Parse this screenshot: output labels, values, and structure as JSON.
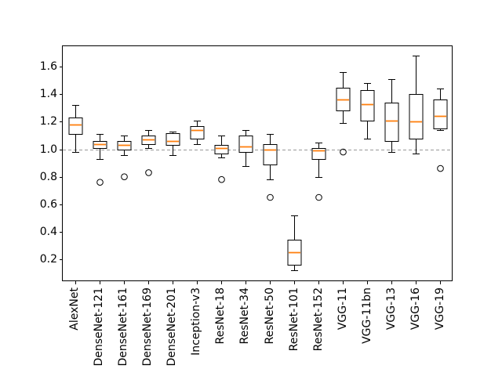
{
  "figure": {
    "background": "#ffffff",
    "title": ""
  },
  "chart_data": {
    "type": "boxplot",
    "title": "",
    "xlabel": "",
    "ylabel": "",
    "categories": [
      "AlexNet",
      "DenseNet-121",
      "DenseNet-161",
      "DenseNet-169",
      "DenseNet-201",
      "Inception-v3",
      "ResNet-18",
      "ResNet-34",
      "ResNet-50",
      "ResNet-101",
      "ResNet-152",
      "VGG-11",
      "VGG-11bn",
      "VGG-13",
      "VGG-16",
      "VGG-19"
    ],
    "boxes": [
      {
        "label": "AlexNet",
        "whislo": 0.98,
        "q1": 1.11,
        "med": 1.18,
        "q3": 1.23,
        "whishi": 1.32,
        "fliers": []
      },
      {
        "label": "DenseNet-121",
        "whislo": 0.93,
        "q1": 1.01,
        "med": 1.04,
        "q3": 1.06,
        "whishi": 1.11,
        "fliers": [
          0.76
        ]
      },
      {
        "label": "DenseNet-161",
        "whislo": 0.96,
        "q1": 1.0,
        "med": 1.03,
        "q3": 1.06,
        "whishi": 1.1,
        "fliers": [
          0.8
        ]
      },
      {
        "label": "DenseNet-169",
        "whislo": 1.01,
        "q1": 1.04,
        "med": 1.07,
        "q3": 1.1,
        "whishi": 1.14,
        "fliers": [
          0.83
        ]
      },
      {
        "label": "DenseNet-201",
        "whislo": 0.96,
        "q1": 1.03,
        "med": 1.06,
        "q3": 1.12,
        "whishi": 1.13,
        "fliers": []
      },
      {
        "label": "Inception-v3",
        "whislo": 1.04,
        "q1": 1.08,
        "med": 1.14,
        "q3": 1.17,
        "whishi": 1.21,
        "fliers": []
      },
      {
        "label": "ResNet-18",
        "whislo": 0.94,
        "q1": 0.97,
        "med": 1.01,
        "q3": 1.03,
        "whishi": 1.1,
        "fliers": [
          0.78
        ]
      },
      {
        "label": "ResNet-34",
        "whislo": 0.88,
        "q1": 0.98,
        "med": 1.02,
        "q3": 1.1,
        "whishi": 1.14,
        "fliers": []
      },
      {
        "label": "ResNet-50",
        "whislo": 0.78,
        "q1": 0.89,
        "med": 1.0,
        "q3": 1.04,
        "whishi": 1.11,
        "fliers": [
          0.65
        ]
      },
      {
        "label": "ResNet-101",
        "whislo": 0.12,
        "q1": 0.16,
        "med": 0.25,
        "q3": 0.34,
        "whishi": 0.52,
        "fliers": []
      },
      {
        "label": "ResNet-152",
        "whislo": 0.8,
        "q1": 0.93,
        "med": 0.99,
        "q3": 1.01,
        "whishi": 1.05,
        "fliers": [
          0.65
        ]
      },
      {
        "label": "VGG-11",
        "whislo": 1.19,
        "q1": 1.28,
        "med": 1.36,
        "q3": 1.45,
        "whishi": 1.56,
        "fliers": [
          0.98
        ]
      },
      {
        "label": "VGG-11bn",
        "whislo": 1.08,
        "q1": 1.21,
        "med": 1.33,
        "q3": 1.43,
        "whishi": 1.48,
        "fliers": []
      },
      {
        "label": "VGG-13",
        "whislo": 0.98,
        "q1": 1.06,
        "med": 1.21,
        "q3": 1.34,
        "whishi": 1.51,
        "fliers": []
      },
      {
        "label": "VGG-16",
        "whislo": 0.97,
        "q1": 1.08,
        "med": 1.2,
        "q3": 1.4,
        "whishi": 1.68,
        "fliers": []
      },
      {
        "label": "VGG-19",
        "whislo": 1.14,
        "q1": 1.15,
        "med": 1.24,
        "q3": 1.36,
        "whishi": 1.44,
        "fliers": [
          0.86
        ]
      }
    ],
    "ytick_labels": [
      "0.2",
      "0.4",
      "0.6",
      "0.8",
      "1.0",
      "1.2",
      "1.4",
      "1.6"
    ],
    "ytick_values": [
      0.2,
      0.4,
      0.6,
      0.8,
      1.0,
      1.2,
      1.4,
      1.6
    ],
    "ylim": [
      0.04,
      1.75
    ],
    "reference_line": {
      "y": 1.0,
      "style": "dashed",
      "color": "#999999"
    },
    "grid": false,
    "legend": false,
    "colors": {
      "box_edge": "#000000",
      "median": "#ff7f0e",
      "flier_edge": "#000000",
      "spine": "#000000",
      "background": "#ffffff"
    }
  }
}
